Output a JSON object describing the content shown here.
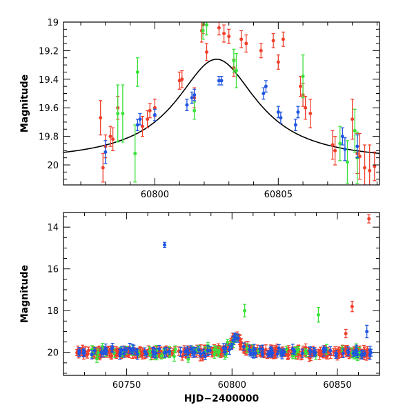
{
  "colors": {
    "red": "#f0402c",
    "green": "#3ae23a",
    "blue": "#1f55e0",
    "curve": "#000000"
  },
  "chart_data": [
    {
      "type": "scatter",
      "ylabel": "Magnitude",
      "xlabel": "",
      "xlim": [
        60796.3,
        60809.1
      ],
      "ylim": [
        20.14,
        19.0
      ],
      "xticks": [
        "60800",
        "60805"
      ],
      "xtick_values": [
        60800,
        60805
      ],
      "yticks": [
        "19",
        "19.2",
        "19.4",
        "19.6",
        "19.8",
        "20"
      ],
      "ytick_values": [
        19.0,
        19.2,
        19.4,
        19.6,
        19.8,
        20.0
      ],
      "model_curve": {
        "peak_x": 60802.5,
        "peak_mag": 19.26,
        "base_mag": 19.98,
        "width": 2.0
      },
      "series": [
        {
          "color": "red",
          "points": [
            [
              60797.8,
              19.67,
              0.12
            ],
            [
              60797.9,
              20.02,
              0.1
            ],
            [
              60798.0,
              19.87,
              0.08
            ],
            [
              60798.2,
              19.8,
              0.07
            ],
            [
              60798.3,
              19.82,
              0.08
            ],
            [
              60798.5,
              19.6,
              0.08
            ],
            [
              60799.5,
              19.73,
              0.07
            ],
            [
              60799.7,
              19.68,
              0.06
            ],
            [
              60799.8,
              19.62,
              0.05
            ],
            [
              60800.0,
              19.6,
              0.06
            ],
            [
              60801.0,
              19.41,
              0.06
            ],
            [
              60801.1,
              19.4,
              0.06
            ],
            [
              60801.6,
              19.53,
              0.07
            ],
            [
              60801.9,
              19.06,
              0.08
            ],
            [
              60801.95,
              19.02,
              0.06
            ],
            [
              60802.1,
              19.21,
              0.06
            ],
            [
              60802.6,
              19.04,
              0.05
            ],
            [
              60802.8,
              19.08,
              0.06
            ],
            [
              60803.0,
              19.1,
              0.05
            ],
            [
              60803.2,
              19.32,
              0.06
            ],
            [
              60803.5,
              19.12,
              0.06
            ],
            [
              60803.7,
              19.15,
              0.06
            ],
            [
              60804.3,
              19.2,
              0.05
            ],
            [
              60804.8,
              19.13,
              0.05
            ],
            [
              60805.0,
              19.28,
              0.05
            ],
            [
              60805.2,
              19.12,
              0.05
            ],
            [
              60805.9,
              19.45,
              0.07
            ],
            [
              60806.0,
              19.51,
              0.08
            ],
            [
              60806.1,
              19.6,
              0.08
            ],
            [
              60806.3,
              19.64,
              0.1
            ],
            [
              60807.2,
              19.86,
              0.1
            ],
            [
              60807.3,
              19.9,
              0.1
            ],
            [
              60808.0,
              19.68,
              0.14
            ],
            [
              60808.2,
              19.92,
              0.14
            ],
            [
              60808.3,
              19.94,
              0.16
            ],
            [
              60808.5,
              20.02,
              0.16
            ],
            [
              60808.7,
              20.04,
              0.18
            ],
            [
              60808.9,
              20.01,
              0.1
            ]
          ]
        },
        {
          "color": "green",
          "points": [
            [
              60798.5,
              19.64,
              0.2
            ],
            [
              60798.7,
              19.64,
              0.2
            ],
            [
              60799.2,
              19.92,
              0.2
            ],
            [
              60799.3,
              19.35,
              0.1
            ],
            [
              60801.6,
              19.62,
              0.06
            ],
            [
              60801.95,
              19.06,
              0.06
            ],
            [
              60802.1,
              19.02,
              0.07
            ],
            [
              60803.2,
              19.27,
              0.08
            ],
            [
              60803.3,
              19.34,
              0.12
            ],
            [
              60806.0,
              19.38,
              0.15
            ],
            [
              60807.5,
              19.85,
              0.12
            ],
            [
              60807.8,
              19.98,
              0.15
            ],
            [
              60808.1,
              19.76,
              0.15
            ],
            [
              60808.2,
              19.95,
              0.18
            ]
          ]
        },
        {
          "color": "blue",
          "points": [
            [
              60798.0,
              19.91,
              0.08
            ],
            [
              60799.3,
              19.72,
              0.04
            ],
            [
              60799.4,
              19.68,
              0.04
            ],
            [
              60800.0,
              19.65,
              0.04
            ],
            [
              60801.3,
              19.58,
              0.04
            ],
            [
              60801.5,
              19.53,
              0.04
            ],
            [
              60801.6,
              19.51,
              0.04
            ],
            [
              60802.6,
              19.41,
              0.03
            ],
            [
              60802.7,
              19.41,
              0.03
            ],
            [
              60804.4,
              19.5,
              0.04
            ],
            [
              60804.5,
              19.45,
              0.04
            ],
            [
              60805.0,
              19.63,
              0.04
            ],
            [
              60805.1,
              19.67,
              0.04
            ],
            [
              60805.7,
              19.72,
              0.04
            ],
            [
              60805.8,
              19.63,
              0.04
            ],
            [
              60807.6,
              19.8,
              0.06
            ],
            [
              60807.7,
              19.89,
              0.08
            ],
            [
              60808.2,
              19.87,
              0.08
            ]
          ]
        }
      ]
    },
    {
      "type": "scatter",
      "ylabel": "Magnitude",
      "xlabel": "HJD−2400000",
      "xlim": [
        60720,
        60870
      ],
      "ylim": [
        21.1,
        13.3
      ],
      "xticks": [
        "60750",
        "60800",
        "60850"
      ],
      "xtick_values": [
        60750,
        60800,
        60850
      ],
      "yticks": [
        "14",
        "16",
        "18",
        "20"
      ],
      "ytick_values": [
        14,
        16,
        18,
        20
      ],
      "outliers": [
        {
          "color": "blue",
          "x": 60768,
          "y": 14.85,
          "err": 0.12
        },
        {
          "color": "red",
          "x": 60865,
          "y": 13.6,
          "err": 0.2
        },
        {
          "color": "red",
          "x": 60857,
          "y": 17.8,
          "err": 0.25
        },
        {
          "color": "green",
          "x": 60806,
          "y": 18.0,
          "err": 0.3
        },
        {
          "color": "green",
          "x": 60841,
          "y": 18.2,
          "err": 0.35
        },
        {
          "color": "blue",
          "x": 60864,
          "y": 19.0,
          "err": 0.3
        },
        {
          "color": "red",
          "x": 60854,
          "y": 19.1,
          "err": 0.2
        }
      ],
      "bulk": {
        "x_range": [
          60726,
          60866
        ],
        "baseline_mag": 20.0,
        "scatter_mag": 0.3,
        "bump_center": 60802,
        "bump_peak_mag": 19.26,
        "bump_width": 2.5,
        "counts": {
          "red": 360,
          "green": 70,
          "blue": 110
        }
      }
    }
  ]
}
